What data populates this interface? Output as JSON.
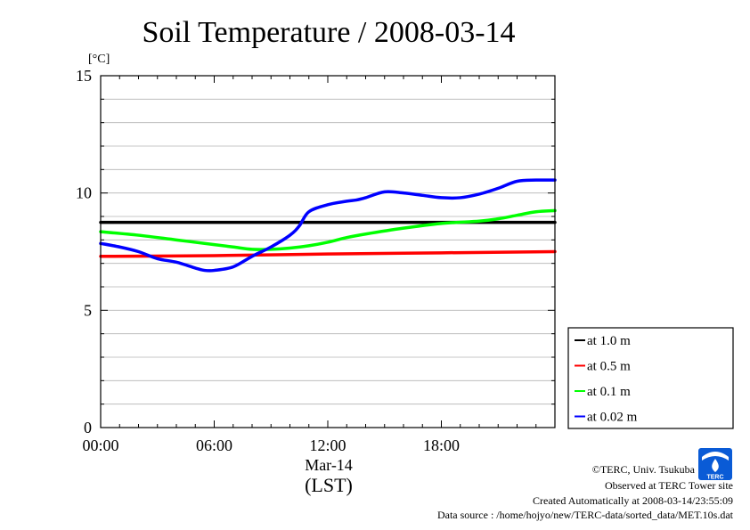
{
  "chart_data": {
    "type": "line",
    "title": "Soil Temperature / 2008-03-14",
    "ylabel": "[°C]",
    "xlabel_lines": [
      "Mar-14",
      "(LST)"
    ],
    "ylim": [
      0,
      15
    ],
    "xlim_hours": [
      0,
      24
    ],
    "y_ticks": [
      "0",
      "5",
      "10",
      "15"
    ],
    "x_ticks": [
      {
        "hour": 0,
        "label": "00:00"
      },
      {
        "hour": 6,
        "label": "06:00"
      },
      {
        "hour": 12,
        "label": "12:00"
      },
      {
        "hour": 18,
        "label": "18:00"
      }
    ],
    "grid": true,
    "legend_position": "lower-right outside",
    "series": [
      {
        "name": "at 1.0 m",
        "color": "#000000",
        "x": [
          0,
          24
        ],
        "y": [
          8.75,
          8.75
        ]
      },
      {
        "name": "at 0.5 m",
        "color": "#ff0000",
        "x": [
          0,
          6,
          12,
          18,
          24
        ],
        "y": [
          7.3,
          7.33,
          7.4,
          7.45,
          7.5
        ]
      },
      {
        "name": "at 0.1 m",
        "color": "#00ff00",
        "x": [
          0,
          2,
          4,
          6,
          7,
          8,
          9,
          10,
          11,
          12,
          13,
          14,
          16,
          18,
          20,
          21,
          22,
          23,
          24
        ],
        "y": [
          8.35,
          8.2,
          8.0,
          7.8,
          7.7,
          7.6,
          7.6,
          7.65,
          7.75,
          7.9,
          8.1,
          8.25,
          8.5,
          8.7,
          8.8,
          8.9,
          9.05,
          9.2,
          9.25
        ]
      },
      {
        "name": "at 0.02 m",
        "color": "#0000ff",
        "x": [
          0,
          1,
          2,
          3,
          4,
          5,
          5.5,
          6,
          7,
          8,
          9,
          10,
          10.5,
          11,
          12,
          13,
          13.5,
          14,
          15,
          16,
          17,
          18,
          19,
          20,
          21,
          22,
          23,
          24
        ],
        "y": [
          7.85,
          7.7,
          7.5,
          7.2,
          7.05,
          6.8,
          6.7,
          6.7,
          6.85,
          7.3,
          7.7,
          8.2,
          8.6,
          9.2,
          9.5,
          9.65,
          9.7,
          9.8,
          10.05,
          10.0,
          9.9,
          9.8,
          9.8,
          9.95,
          10.2,
          10.5,
          10.55,
          10.55
        ]
      }
    ]
  },
  "credits": {
    "copyright": "©TERC, Univ. Tsukuba",
    "observed": "Observed at TERC Tower site",
    "created": "Created Automatically at 2008-03-14/23:55:09",
    "source": "Data source : /home/hojyo/new/TERC-data/sorted_data/MET.10s.dat"
  },
  "logo": {
    "text": "TERC",
    "color": "#0a5bd6"
  }
}
